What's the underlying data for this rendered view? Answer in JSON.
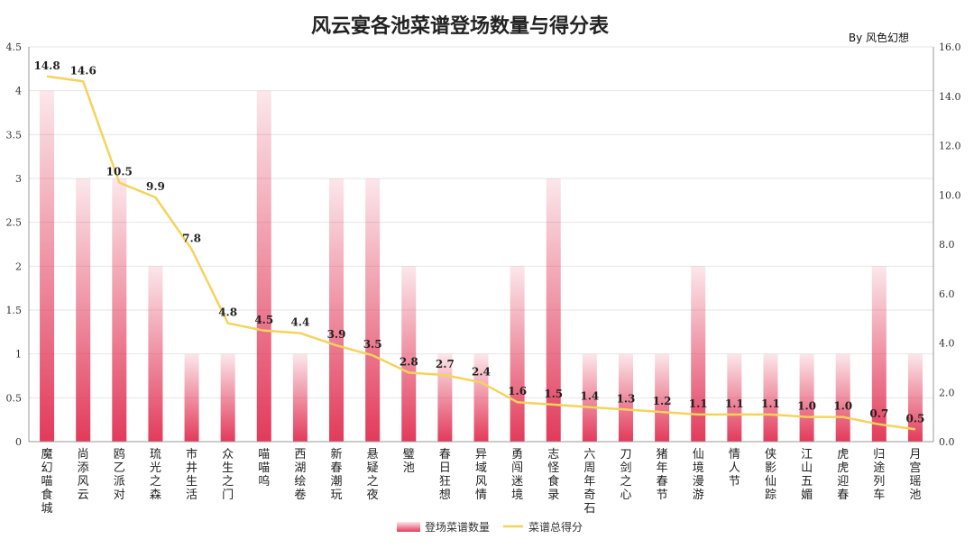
{
  "title": "风云宴各池菜谱登场数量与得分表",
  "byline": "By  风色幻想",
  "colors": {
    "bar": "#e23a5a",
    "line": "#f5d35a"
  },
  "chart_data": {
    "type": "bar",
    "title": "风云宴各池菜谱登场数量与得分表",
    "categories": [
      "魔幻喵食城",
      "尚添风云",
      "鸥乙派对",
      "琉光之森",
      "市井生活",
      "众生之门",
      "喵喵呜",
      "西湖绘卷",
      "新春潮玩",
      "悬疑之夜",
      "璧池",
      "春日狂想",
      "异域风情",
      "勇闯迷境",
      "志怪食录",
      "六周年奇石",
      "刀剑之心",
      "猪年春节",
      "仙境漫游",
      "情人节",
      "侠影仙踪",
      "江山五媚",
      "虎虎迎春",
      "归途列车",
      "月宫瑶池"
    ],
    "series": [
      {
        "name": "登场菜谱数量",
        "type": "bar",
        "axis": "left",
        "values": [
          4,
          3,
          3,
          2,
          1,
          1,
          4,
          1,
          3,
          3,
          2,
          1,
          1,
          2,
          3,
          1,
          1,
          1,
          2,
          1,
          1,
          1,
          1,
          2,
          1
        ]
      },
      {
        "name": "菜谱总得分",
        "type": "line",
        "axis": "right",
        "values": [
          14.8,
          14.6,
          10.5,
          9.9,
          7.8,
          4.8,
          4.5,
          4.4,
          3.9,
          3.5,
          2.8,
          2.7,
          2.4,
          1.6,
          1.5,
          1.4,
          1.3,
          1.2,
          1.1,
          1.1,
          1.1,
          1.0,
          1.0,
          0.7,
          0.5
        ],
        "labels": [
          "14.8",
          "14.6",
          "10.5",
          "9.9",
          "7.8",
          "4.8",
          "4.5",
          "4.4",
          "3.9",
          "3.5",
          "2.8",
          "2.7",
          "2.4",
          "1.6",
          "1.5",
          "1.4",
          "1.3",
          "1.2",
          "1.1",
          "1.1",
          "1.1",
          "1.0",
          "1.0",
          "0.7",
          "0.5"
        ]
      }
    ],
    "y_left": {
      "ylim": [
        0,
        4.5
      ],
      "ticks": [
        "0",
        "0.5",
        "1",
        "1.5",
        "2",
        "2.5",
        "3",
        "3.5",
        "4",
        "4.5"
      ]
    },
    "y_right": {
      "ylim": [
        0,
        16
      ],
      "ticks": [
        "0.0",
        "2.0",
        "4.0",
        "6.0",
        "8.0",
        "10.0",
        "12.0",
        "14.0",
        "16.0"
      ]
    },
    "grid": true,
    "legend": "bottom"
  }
}
